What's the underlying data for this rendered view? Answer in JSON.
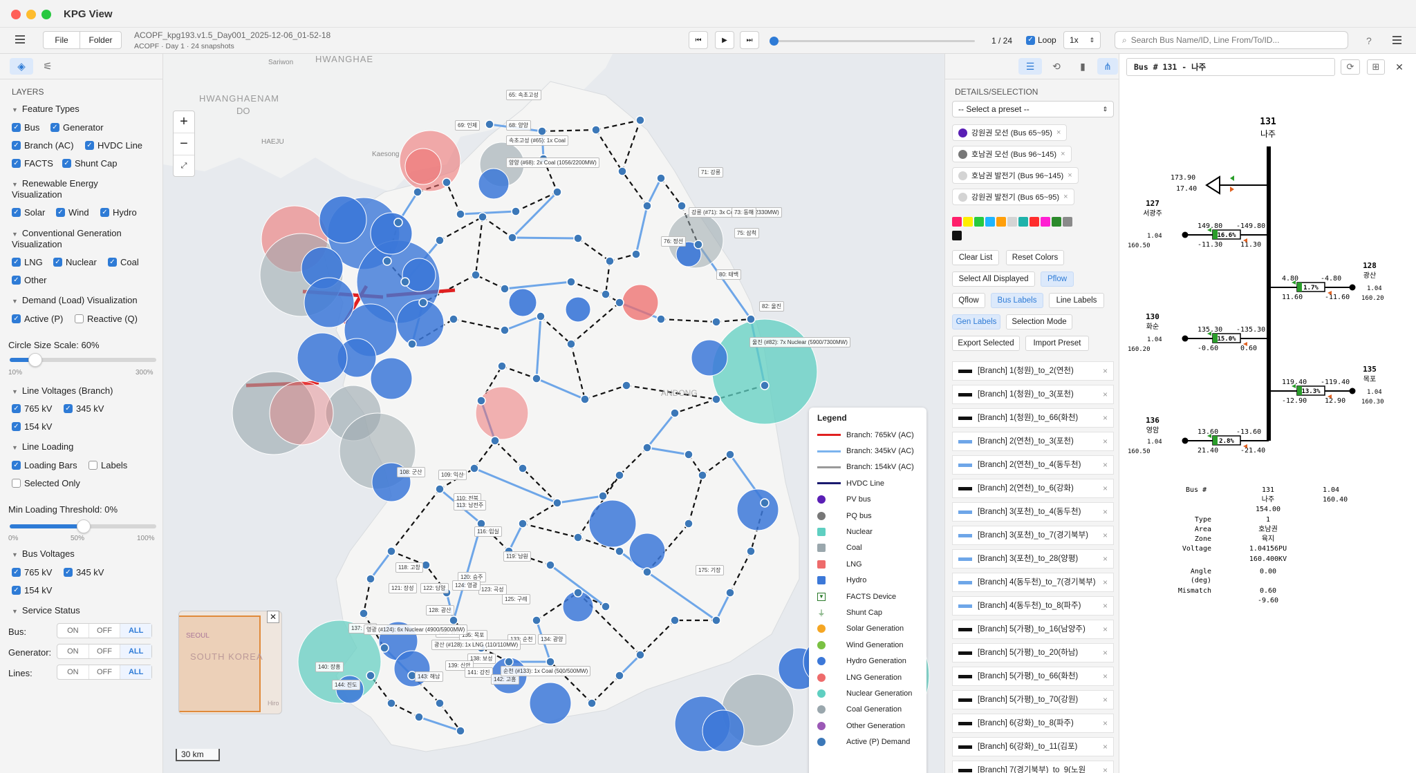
{
  "window": {
    "title": "KPG View"
  },
  "toolbar": {
    "file": "File",
    "folder": "Folder",
    "filename": "ACOPF_kpg193.v1.5_Day001_2025-12-06_01-52-18",
    "subtitle": "ACOPF · Day 1 · 24 snapshots",
    "snapshot": "1 / 24",
    "loop": "Loop",
    "speed": "1x",
    "search_placeholder": "Search Bus Name/ID, Line From/To/ID...",
    "help": "?"
  },
  "left": {
    "layers_title": "LAYERS",
    "feature_types": "Feature Types",
    "bus": "Bus",
    "generator": "Generator",
    "branch_ac": "Branch (AC)",
    "hvdc": "HVDC Line",
    "facts": "FACTS",
    "shunt": "Shunt Cap",
    "renewable_title": "Renewable Energy",
    "renewable_title2": "Visualization",
    "solar": "Solar",
    "wind": "Wind",
    "hydro": "Hydro",
    "conventional_title": "Conventional Generation",
    "conventional_title2": "Visualization",
    "lng": "LNG",
    "nuclear": "Nuclear",
    "coal": "Coal",
    "other": "Other",
    "demand_title": "Demand (Load) Visualization",
    "active": "Active (P)",
    "reactive": "Reactive (Q)",
    "circle_scale": "Circle Size Scale: 60%",
    "circle_value": 0.6,
    "cs_min": "10%",
    "cs_max": "300%",
    "line_voltages": "Line Voltages (Branch)",
    "lv765": "765 kV",
    "lv345": "345 kV",
    "lv154": "154 kV",
    "line_loading": "Line Loading",
    "loading_bars": "Loading Bars",
    "labels": "Labels",
    "selected_only": "Selected Only",
    "min_loading": "Min Loading Threshold: 0%",
    "ml_0": "0%",
    "ml_50": "50%",
    "ml_100": "100%",
    "bus_voltages": "Bus Voltages",
    "bv765": "765 kV",
    "bv345": "345 kV",
    "bv154": "154 kV",
    "service_status": "Service Status",
    "svc_bus": "Bus:",
    "svc_gen": "Generator:",
    "svc_lines": "Lines:",
    "on": "ON",
    "off": "OFF",
    "all": "ALL"
  },
  "map": {
    "places": [
      "Sariwon",
      "HWANGHAE",
      "HWANGHAENAM",
      "DO",
      "HAEJU",
      "Kaesong",
      "ANDONG",
      "GANGNEUNG",
      "SEOUL",
      "SOUTH KOREA",
      "Hiro"
    ],
    "scale": "30 km",
    "labels": [
      "65: 속초고성",
      "69: 인제",
      "68: 양양",
      "속초고성 (#65): 1x Coal",
      "양양 (#68): 2x Coal (1056/2200MW)",
      "71: 강릉",
      "강릉 (#71): 3x Coal (1789/2330MW)",
      "73: 동해",
      "75: 삼척",
      "76: 정선",
      "80: 태백",
      "82: 울진",
      "울진 (#82): 7x Nuclear (5900/7300MW)",
      "108: 군산",
      "109: 익산",
      "110: 전북",
      "113: 남전주",
      "116: 임실",
      "118: 고창",
      "119: 남원",
      "120: 승주",
      "121: 장성",
      "122: 담양",
      "123: 곡성",
      "124: 영광",
      "125: 구례",
      "128: 광산",
      "130: 화순",
      "131: 나주",
      "133: 순천",
      "134: 광양",
      "135: 목포",
      "137: 여수",
      "138: 보성",
      "139: 신안",
      "140: 장흥",
      "141: 강진",
      "142: 고흥",
      "143: 해남",
      "144: 진도",
      "175: 기장",
      "영광 (#124): 6x Nuclear (4900/5900MW)",
      "광산 (#128): 1x LNG (110/110MW)",
      "순천 (#133): 1x Coal (500/500MW)"
    ],
    "legend_title": "Legend",
    "legend": [
      {
        "label": "Branch: 765kV (AC)",
        "color": "#e02020",
        "kind": "line"
      },
      {
        "label": "Branch: 345kV (AC)",
        "color": "#7bb3ee",
        "kind": "line"
      },
      {
        "label": "Branch: 154kV (AC)",
        "color": "#9a9a9a",
        "kind": "line"
      },
      {
        "label": "HVDC Line",
        "color": "#1a1a6e",
        "kind": "line"
      },
      {
        "label": "PV bus",
        "color": "#5a1fb5",
        "kind": "dot"
      },
      {
        "label": "PQ bus",
        "color": "#777777",
        "kind": "dot"
      },
      {
        "label": "Nuclear",
        "color": "#5fcfc1",
        "kind": "sq"
      },
      {
        "label": "Coal",
        "color": "#9aa7ad",
        "kind": "sq"
      },
      {
        "label": "LNG",
        "color": "#ee6b6b",
        "kind": "sq"
      },
      {
        "label": "Hydro",
        "color": "#3c78d8",
        "kind": "sq"
      },
      {
        "label": "FACTS Device",
        "color": "#2a7a2a",
        "kind": "tri"
      },
      {
        "label": "Shunt Cap",
        "color": "#2a7a2a",
        "kind": "cap"
      },
      {
        "label": "Solar Generation",
        "color": "#f5a623",
        "kind": "dot"
      },
      {
        "label": "Wind Generation",
        "color": "#7ac143",
        "kind": "dot"
      },
      {
        "label": "Hydro Generation",
        "color": "#3c78d8",
        "kind": "dot"
      },
      {
        "label": "LNG Generation",
        "color": "#ee6b6b",
        "kind": "dot"
      },
      {
        "label": "Nuclear Generation",
        "color": "#5fcfc1",
        "kind": "dot"
      },
      {
        "label": "Coal Generation",
        "color": "#9aa7ad",
        "kind": "dot"
      },
      {
        "label": "Other Generation",
        "color": "#9b59b6",
        "kind": "dot"
      },
      {
        "label": "Active (P) Demand",
        "color": "#3c78b8",
        "kind": "dot"
      }
    ]
  },
  "details": {
    "title": "DETAILS/SELECTION",
    "preset": "-- Select a preset --",
    "chips": [
      {
        "label": "강원권 모선 (Bus 65~95)",
        "color": "#5a1fb5"
      },
      {
        "label": "호남권 모선 (Bus 96~145)",
        "color": "#777777"
      },
      {
        "label": "호남권 발전기 (Bus 96~145)",
        "color": "#d4d4d4"
      },
      {
        "label": "강원권 발전기 (Bus 65~95)",
        "color": "#d4d4d4"
      }
    ],
    "palette": [
      "#ff1f6b",
      "#ffee00",
      "#27c93f",
      "#1fb5ff",
      "#ff9f0a",
      "#d4d4d4",
      "#20b2aa",
      "#ff2d2d",
      "#ff1fd2",
      "#2c8a2c",
      "#8a8a8a",
      "#111111"
    ],
    "clear": "Clear List",
    "reset": "Reset Colors",
    "select_all": "Select All Displayed",
    "pflow": "Pflow",
    "qflow": "Qflow",
    "bus_labels": "Bus Labels",
    "line_labels": "Line Labels",
    "gen_labels": "Gen Labels",
    "selection_mode": "Selection Mode",
    "export": "Export Selected",
    "import": "Import Preset",
    "items": [
      {
        "label": "[Branch] 1(청원)_to_2(연천)",
        "color": "#111111"
      },
      {
        "label": "[Branch] 1(청원)_to_3(포천)",
        "color": "#111111"
      },
      {
        "label": "[Branch] 1(청원)_to_66(화천)",
        "color": "#111111"
      },
      {
        "label": "[Branch] 2(연천)_to_3(포천)",
        "color": "#6ea6e8"
      },
      {
        "label": "[Branch] 2(연천)_to_4(동두천)",
        "color": "#6ea6e8"
      },
      {
        "label": "[Branch] 2(연천)_to_6(강화)",
        "color": "#111111"
      },
      {
        "label": "[Branch] 3(포천)_to_4(동두천)",
        "color": "#6ea6e8"
      },
      {
        "label": "[Branch] 3(포천)_to_7(경기북부)",
        "color": "#6ea6e8"
      },
      {
        "label": "[Branch] 3(포천)_to_28(양평)",
        "color": "#6ea6e8"
      },
      {
        "label": "[Branch] 4(동두천)_to_7(경기북부)",
        "color": "#6ea6e8"
      },
      {
        "label": "[Branch] 4(동두천)_to_8(파주)",
        "color": "#6ea6e8"
      },
      {
        "label": "[Branch] 5(가평)_to_16(남양주)",
        "color": "#111111"
      },
      {
        "label": "[Branch] 5(가평)_to_20(하남)",
        "color": "#111111"
      },
      {
        "label": "[Branch] 5(가평)_to_66(화천)",
        "color": "#111111"
      },
      {
        "label": "[Branch] 5(가평)_to_70(강원)",
        "color": "#111111"
      },
      {
        "label": "[Branch] 6(강화)_to_8(파주)",
        "color": "#111111"
      },
      {
        "label": "[Branch] 6(강화)_to_11(김포)",
        "color": "#111111"
      },
      {
        "label": "[Branch] 7(경기북부)_to_9(노원",
        "color": "#111111"
      }
    ]
  },
  "sld": {
    "title": "Bus # 131 - 나주",
    "bus_num": "131",
    "bus_name": "나주",
    "shunt_p": "173.90",
    "shunt_q": "17.40",
    "branches": [
      {
        "num": "127",
        "name": "서광주",
        "v": "1.04",
        "ang": "160.50",
        "p1": "149.80",
        "p2": "-149.80",
        "q1": "-11.30",
        "q2": "11.30",
        "load": "16.6%"
      },
      {
        "num": "128",
        "name": "광산",
        "v": "1.04",
        "ang": "160.20",
        "p1": "4.80",
        "p2": "-4.80",
        "q1": "11.60",
        "q2": "-11.60",
        "load": "1.7%"
      },
      {
        "num": "130",
        "name": "화순",
        "v": "1.04",
        "ang": "160.20",
        "p1": "135.30",
        "p2": "-135.30",
        "q1": "-0.60",
        "q2": "0.60",
        "load": "15.0%"
      },
      {
        "num": "135",
        "name": "목포",
        "v": "1.04",
        "ang": "160.30",
        "p1": "119.40",
        "p2": "-119.40",
        "q1": "-12.90",
        "q2": "12.90",
        "load": "13.3%"
      },
      {
        "num": "136",
        "name": "영암",
        "v": "1.04",
        "ang": "160.50",
        "p1": "13.60",
        "p2": "-13.60",
        "q1": "21.40",
        "q2": "-21.40",
        "load": "2.8%"
      }
    ],
    "info": {
      "bus_label": "Bus #",
      "bus_v1": "131",
      "bus_v2": "1.04",
      "name": "나주",
      "ang": "160.40",
      "kv": "154.00",
      "type_label": "Type",
      "type": "1",
      "area_label": "Area",
      "area": "호남권",
      "zone_label": "Zone",
      "zone": "육지",
      "voltage_label": "Voltage",
      "voltage": "1.04156PU",
      "voltage_kv": "160.400KV",
      "angle_label": "Angle",
      "angle_label2": "(deg)",
      "angle": "0.00",
      "mismatch_label": "Mismatch",
      "mismatch1": "0.60",
      "mismatch2": "-9.60"
    }
  }
}
